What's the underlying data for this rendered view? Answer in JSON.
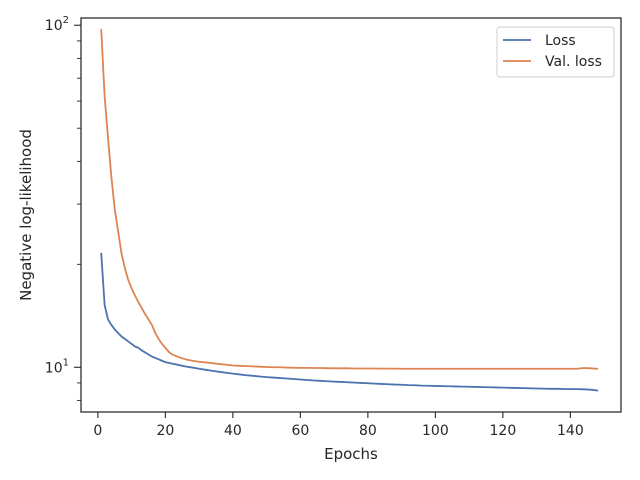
{
  "chart_data": {
    "type": "line",
    "title": "",
    "xlabel": "Epochs",
    "ylabel": "Negative log-likelihood",
    "xscale": "linear",
    "yscale": "log",
    "xlim": [
      -5,
      155
    ],
    "ylim": [
      7.4,
      105
    ],
    "xticks": [
      0,
      20,
      40,
      60,
      80,
      100,
      120,
      140
    ],
    "xtick_labels": [
      "0",
      "20",
      "40",
      "60",
      "80",
      "100",
      "120",
      "140"
    ],
    "yticks_major": [
      10,
      100
    ],
    "ytick_labels": [
      "10^1",
      "10^2"
    ],
    "ytick_label_parts": [
      {
        "base": "10",
        "exp": "1"
      },
      {
        "base": "10",
        "exp": "2"
      }
    ],
    "grid": false,
    "legend_position": "top-right",
    "series": [
      {
        "name": "Loss",
        "color": "#4c72b0",
        "x": [
          1,
          2,
          3,
          4,
          5,
          6,
          7,
          8,
          9,
          10,
          11,
          12,
          13,
          14,
          15,
          16,
          17,
          18,
          19,
          20,
          22,
          24,
          26,
          28,
          30,
          32,
          34,
          36,
          38,
          40,
          42,
          44,
          46,
          48,
          50,
          52,
          54,
          56,
          58,
          60,
          62,
          64,
          66,
          68,
          70,
          72,
          74,
          76,
          78,
          80,
          82,
          84,
          86,
          88,
          90,
          92,
          94,
          96,
          98,
          100,
          102,
          104,
          106,
          108,
          110,
          112,
          114,
          116,
          118,
          120,
          122,
          124,
          126,
          128,
          130,
          132,
          134,
          136,
          138,
          140,
          142,
          144,
          146,
          148
        ],
        "y": [
          21.5,
          15.2,
          13.8,
          13.3,
          12.9,
          12.6,
          12.3,
          12.1,
          11.9,
          11.7,
          11.5,
          11.4,
          11.2,
          11.05,
          10.9,
          10.75,
          10.65,
          10.55,
          10.45,
          10.35,
          10.25,
          10.15,
          10.05,
          9.98,
          9.9,
          9.83,
          9.76,
          9.7,
          9.64,
          9.58,
          9.53,
          9.48,
          9.44,
          9.4,
          9.36,
          9.33,
          9.3,
          9.27,
          9.24,
          9.21,
          9.18,
          9.15,
          9.13,
          9.1,
          9.08,
          9.06,
          9.04,
          9.02,
          9.0,
          8.98,
          8.96,
          8.94,
          8.92,
          8.9,
          8.89,
          8.87,
          8.86,
          8.84,
          8.83,
          8.82,
          8.81,
          8.8,
          8.79,
          8.78,
          8.77,
          8.76,
          8.75,
          8.74,
          8.73,
          8.72,
          8.71,
          8.7,
          8.69,
          8.68,
          8.67,
          8.66,
          8.65,
          8.65,
          8.64,
          8.63,
          8.63,
          8.62,
          8.6,
          8.55
        ]
      },
      {
        "name": "Val. loss",
        "color": "#dd8452",
        "x": [
          1,
          2,
          3,
          4,
          5,
          6,
          7,
          8,
          9,
          10,
          11,
          12,
          13,
          14,
          15,
          16,
          17,
          18,
          19,
          20,
          21,
          22,
          24,
          26,
          28,
          30,
          32,
          34,
          36,
          38,
          40,
          42,
          44,
          46,
          48,
          50,
          52,
          54,
          56,
          58,
          60,
          62,
          64,
          66,
          68,
          70,
          72,
          74,
          76,
          78,
          80,
          82,
          84,
          86,
          88,
          90,
          92,
          94,
          96,
          98,
          100,
          102,
          104,
          106,
          108,
          110,
          112,
          114,
          116,
          118,
          120,
          122,
          124,
          126,
          128,
          130,
          132,
          134,
          136,
          138,
          140,
          142,
          144,
          146,
          148
        ],
        "y": [
          97,
          62,
          47,
          36,
          29,
          25,
          21.5,
          19.5,
          18,
          17,
          16.2,
          15.5,
          14.9,
          14.3,
          13.8,
          13.3,
          12.6,
          12.1,
          11.7,
          11.4,
          11.1,
          10.9,
          10.7,
          10.55,
          10.45,
          10.38,
          10.33,
          10.28,
          10.22,
          10.17,
          10.12,
          10.1,
          10.08,
          10.06,
          10.04,
          10.02,
          10.0,
          10.0,
          9.98,
          9.97,
          9.96,
          9.96,
          9.95,
          9.95,
          9.94,
          9.93,
          9.93,
          9.93,
          9.92,
          9.92,
          9.92,
          9.92,
          9.91,
          9.91,
          9.91,
          9.9,
          9.9,
          9.9,
          9.9,
          9.9,
          9.9,
          9.9,
          9.9,
          9.9,
          9.9,
          9.9,
          9.9,
          9.9,
          9.9,
          9.9,
          9.9,
          9.9,
          9.9,
          9.9,
          9.9,
          9.9,
          9.9,
          9.9,
          9.9,
          9.9,
          9.9,
          9.9,
          9.95,
          9.93,
          9.9
        ]
      }
    ]
  }
}
